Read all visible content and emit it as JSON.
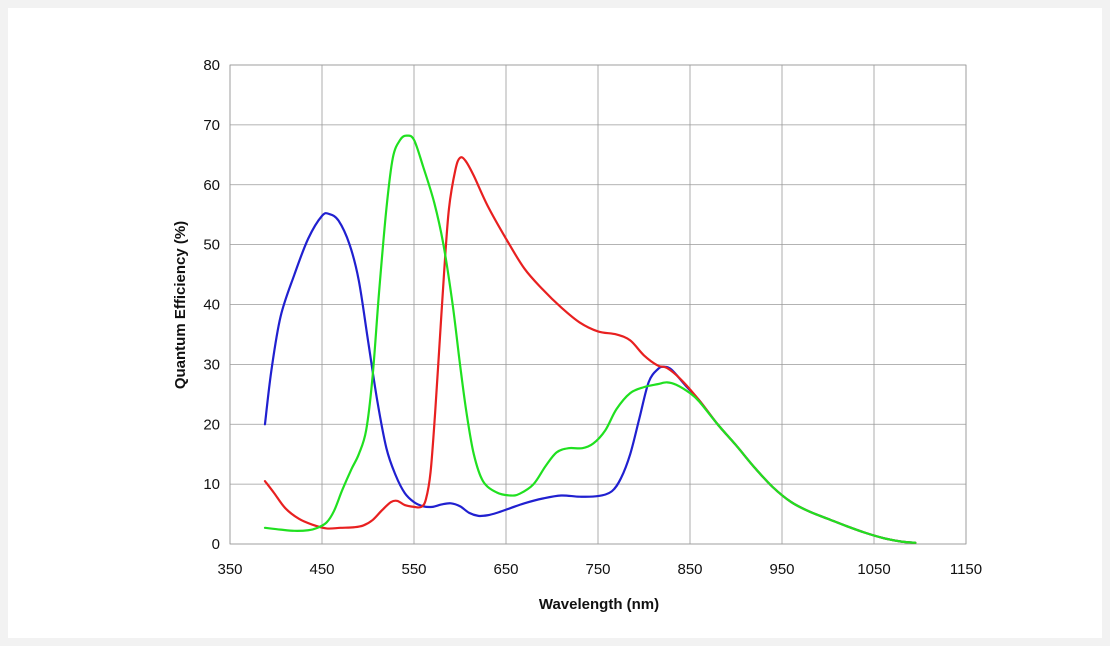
{
  "chart_data": {
    "type": "line",
    "title": "",
    "xlabel": "Wavelength (nm)",
    "ylabel": "Quantum Efficiency (%)",
    "xlim": [
      350,
      1150
    ],
    "ylim": [
      0,
      80
    ],
    "xticks": [
      350,
      450,
      550,
      650,
      750,
      850,
      950,
      1050,
      1150
    ],
    "yticks": [
      0,
      10,
      20,
      30,
      40,
      50,
      60,
      70,
      80
    ],
    "grid": true,
    "legend": "none",
    "series": [
      {
        "color": "#2020d0",
        "points": [
          [
            388,
            20
          ],
          [
            395,
            29
          ],
          [
            405,
            38
          ],
          [
            420,
            45
          ],
          [
            435,
            51
          ],
          [
            450,
            54.8
          ],
          [
            458,
            55.1
          ],
          [
            468,
            54
          ],
          [
            480,
            50
          ],
          [
            490,
            44
          ],
          [
            500,
            34
          ],
          [
            510,
            24
          ],
          [
            520,
            16
          ],
          [
            530,
            11.5
          ],
          [
            540,
            8.5
          ],
          [
            550,
            7
          ],
          [
            560,
            6.3
          ],
          [
            570,
            6.2
          ],
          [
            580,
            6.6
          ],
          [
            590,
            6.8
          ],
          [
            600,
            6.3
          ],
          [
            610,
            5.2
          ],
          [
            620,
            4.7
          ],
          [
            630,
            4.8
          ],
          [
            640,
            5.2
          ],
          [
            655,
            6
          ],
          [
            670,
            6.8
          ],
          [
            690,
            7.6
          ],
          [
            710,
            8.1
          ],
          [
            730,
            7.9
          ],
          [
            750,
            8
          ],
          [
            765,
            8.8
          ],
          [
            775,
            11
          ],
          [
            785,
            15
          ],
          [
            795,
            21
          ],
          [
            805,
            27
          ],
          [
            815,
            29.2
          ],
          [
            822,
            29.6
          ],
          [
            830,
            29.1
          ],
          [
            845,
            26.5
          ],
          [
            860,
            24
          ],
          [
            880,
            20
          ],
          [
            900,
            16.5
          ],
          [
            920,
            12.8
          ],
          [
            940,
            9.5
          ],
          [
            960,
            7
          ],
          [
            980,
            5.4
          ],
          [
            1000,
            4.2
          ],
          [
            1020,
            3
          ],
          [
            1040,
            1.9
          ],
          [
            1060,
            1
          ],
          [
            1080,
            0.4
          ],
          [
            1095,
            0.2
          ]
        ]
      },
      {
        "color": "#e82020",
        "points": [
          [
            388,
            10.5
          ],
          [
            398,
            8.5
          ],
          [
            410,
            6
          ],
          [
            425,
            4.2
          ],
          [
            440,
            3.2
          ],
          [
            455,
            2.6
          ],
          [
            470,
            2.7
          ],
          [
            485,
            2.8
          ],
          [
            495,
            3.1
          ],
          [
            505,
            4
          ],
          [
            515,
            5.6
          ],
          [
            525,
            7
          ],
          [
            532,
            7.2
          ],
          [
            540,
            6.5
          ],
          [
            550,
            6.2
          ],
          [
            558,
            6.2
          ],
          [
            563,
            7.5
          ],
          [
            568,
            12
          ],
          [
            573,
            22
          ],
          [
            578,
            34
          ],
          [
            583,
            46
          ],
          [
            588,
            56
          ],
          [
            595,
            62.5
          ],
          [
            600,
            64.5
          ],
          [
            606,
            64
          ],
          [
            615,
            61.5
          ],
          [
            630,
            56.5
          ],
          [
            650,
            51
          ],
          [
            670,
            46
          ],
          [
            690,
            42.5
          ],
          [
            710,
            39.5
          ],
          [
            730,
            37
          ],
          [
            750,
            35.5
          ],
          [
            770,
            35
          ],
          [
            785,
            34
          ],
          [
            800,
            31.5
          ],
          [
            815,
            29.8
          ],
          [
            825,
            29.4
          ],
          [
            840,
            27.5
          ],
          [
            860,
            24
          ],
          [
            880,
            20
          ],
          [
            900,
            16.5
          ],
          [
            920,
            12.8
          ],
          [
            940,
            9.5
          ],
          [
            960,
            7
          ],
          [
            980,
            5.4
          ],
          [
            1000,
            4.2
          ],
          [
            1020,
            3
          ],
          [
            1040,
            1.9
          ],
          [
            1060,
            1
          ],
          [
            1080,
            0.4
          ],
          [
            1095,
            0.2
          ]
        ]
      },
      {
        "color": "#20e020",
        "points": [
          [
            388,
            2.7
          ],
          [
            405,
            2.4
          ],
          [
            420,
            2.2
          ],
          [
            435,
            2.3
          ],
          [
            445,
            2.7
          ],
          [
            455,
            3.6
          ],
          [
            463,
            5.5
          ],
          [
            472,
            9
          ],
          [
            482,
            12.5
          ],
          [
            490,
            15
          ],
          [
            498,
            19
          ],
          [
            505,
            28
          ],
          [
            512,
            42
          ],
          [
            520,
            56
          ],
          [
            527,
            64.5
          ],
          [
            535,
            67.5
          ],
          [
            542,
            68.2
          ],
          [
            550,
            67.5
          ],
          [
            560,
            63
          ],
          [
            572,
            57
          ],
          [
            582,
            50
          ],
          [
            592,
            40
          ],
          [
            600,
            30
          ],
          [
            607,
            22
          ],
          [
            615,
            15
          ],
          [
            625,
            10.5
          ],
          [
            640,
            8.6
          ],
          [
            655,
            8.1
          ],
          [
            665,
            8.4
          ],
          [
            680,
            10
          ],
          [
            693,
            13
          ],
          [
            705,
            15.3
          ],
          [
            718,
            16
          ],
          [
            733,
            16
          ],
          [
            745,
            16.8
          ],
          [
            758,
            19
          ],
          [
            770,
            22.5
          ],
          [
            785,
            25.2
          ],
          [
            800,
            26.2
          ],
          [
            815,
            26.7
          ],
          [
            825,
            27
          ],
          [
            835,
            26.6
          ],
          [
            850,
            25.2
          ],
          [
            860,
            23.8
          ],
          [
            880,
            20
          ],
          [
            900,
            16.5
          ],
          [
            920,
            12.8
          ],
          [
            940,
            9.5
          ],
          [
            960,
            7
          ],
          [
            980,
            5.4
          ],
          [
            1000,
            4.2
          ],
          [
            1020,
            3
          ],
          [
            1040,
            1.9
          ],
          [
            1060,
            1
          ],
          [
            1080,
            0.4
          ],
          [
            1095,
            0.2
          ]
        ]
      }
    ]
  }
}
